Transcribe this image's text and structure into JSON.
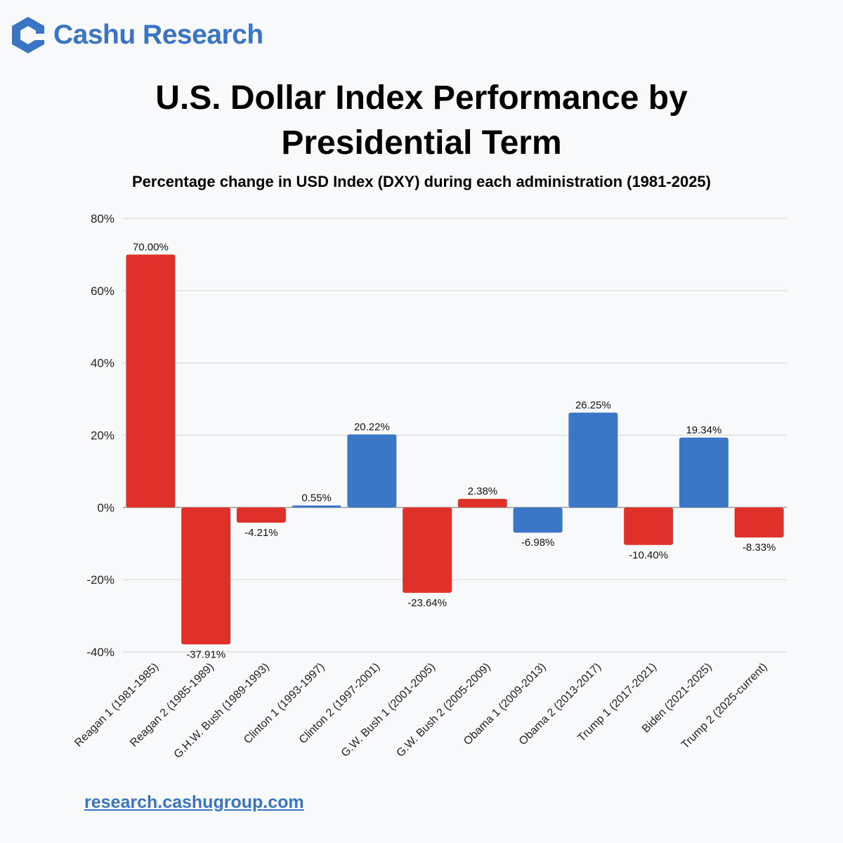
{
  "brand": {
    "name": "Cashu Research"
  },
  "colors": {
    "positive": "#3a77c7",
    "negative": "#e0302a",
    "brand": "#3a74c5"
  },
  "chart_data": {
    "type": "bar",
    "title": "U.S. Dollar Index Performance by Presidential Term",
    "title_lines": [
      "U.S. Dollar Index Performance by",
      "Presidential Term"
    ],
    "subtitle": "Percentage change in USD Index (DXY) during each administration (1981-2025)",
    "xlabel": "",
    "ylabel": "",
    "ylim": [
      -40,
      80
    ],
    "yticks": [
      80,
      60,
      40,
      20,
      0,
      -20,
      -40
    ],
    "ytick_labels": [
      "80%",
      "60%",
      "40%",
      "20%",
      "0%",
      "-20%",
      "-40%"
    ],
    "grid": true,
    "categories": [
      "Reagan 1 (1981-1985)",
      "Reagan 2 (1985-1989)",
      "G.H.W. Bush (1989-1993)",
      "Clinton 1 (1993-1997)",
      "Clinton 2 (1997-2001)",
      "G.W. Bush 1 (2001-2005)",
      "G.W. Bush 2 (2005-2009)",
      "Obama 1 (2009-2013)",
      "Obama 2 (2013-2017)",
      "Trump 1 (2017-2021)",
      "Biden (2021-2025)",
      "Trump 2 (2025-current)"
    ],
    "values": [
      70.0,
      -37.91,
      -4.21,
      0.55,
      20.22,
      -23.64,
      2.38,
      -6.98,
      26.25,
      -10.4,
      19.34,
      -8.33
    ],
    "value_labels": [
      "70.00%",
      "-37.91%",
      "-4.21%",
      "0.55%",
      "20.22%",
      "-23.64%",
      "2.38%",
      "-6.98%",
      "26.25%",
      "-10.40%",
      "19.34%",
      "-8.33%"
    ],
    "party": [
      "R",
      "R",
      "R",
      "D",
      "D",
      "R",
      "R",
      "D",
      "D",
      "R",
      "D",
      "R"
    ]
  },
  "footer": {
    "link_text": "research.cashugroup.com"
  }
}
